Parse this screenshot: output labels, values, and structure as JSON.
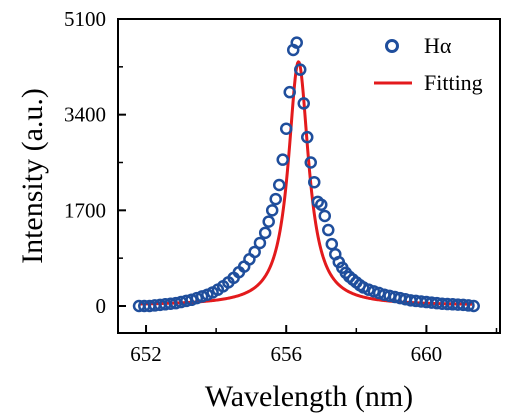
{
  "chart_data": {
    "type": "scatter",
    "xlabel": "Wavelength (nm)",
    "ylabel": "Intensity (a.u.)",
    "xlim": [
      651.2,
      662.1
    ],
    "ylim": [
      -480,
      5100
    ],
    "xticks": [
      652,
      656,
      660
    ],
    "yticks": [
      0,
      1700,
      3400,
      5100
    ],
    "grid": false,
    "legend_position": "top-right",
    "series": [
      {
        "name": "Hα",
        "kind": "markers",
        "marker": "open-circle",
        "color": "#1f4e9c",
        "x": [
          651.8,
          651.95,
          652.1,
          652.25,
          652.4,
          652.55,
          652.7,
          652.85,
          653.0,
          653.15,
          653.3,
          653.45,
          653.6,
          653.75,
          653.9,
          654.05,
          654.2,
          654.35,
          654.5,
          654.65,
          654.8,
          654.95,
          655.1,
          655.25,
          655.4,
          655.5,
          655.6,
          655.7,
          655.8,
          655.9,
          656.0,
          656.1,
          656.2,
          656.3,
          656.4,
          656.5,
          656.6,
          656.7,
          656.8,
          656.9,
          657.0,
          657.1,
          657.2,
          657.3,
          657.4,
          657.5,
          657.6,
          657.7,
          657.8,
          657.9,
          658.0,
          658.1,
          658.2,
          658.35,
          658.5,
          658.65,
          658.8,
          658.95,
          659.1,
          659.25,
          659.4,
          659.55,
          659.7,
          659.85,
          660.0,
          660.15,
          660.3,
          660.45,
          660.6,
          660.75,
          660.9,
          661.05,
          661.2,
          661.35
        ],
        "y": [
          0,
          0,
          0,
          10,
          20,
          30,
          40,
          50,
          70,
          90,
          110,
          140,
          170,
          200,
          240,
          290,
          350,
          420,
          500,
          600,
          700,
          830,
          960,
          1120,
          1300,
          1500,
          1700,
          1900,
          2150,
          2600,
          3150,
          3800,
          4550,
          4680,
          4200,
          3600,
          3000,
          2550,
          2200,
          1850,
          1800,
          1600,
          1350,
          1100,
          920,
          780,
          680,
          590,
          520,
          470,
          420,
          370,
          330,
          290,
          260,
          230,
          200,
          180,
          160,
          140,
          120,
          100,
          90,
          80,
          70,
          60,
          50,
          40,
          35,
          30,
          25,
          20,
          10,
          0
        ]
      },
      {
        "name": "Fitting",
        "kind": "line",
        "color": "#e31a1c",
        "model": "lorentzian",
        "center": 656.35,
        "fwhm": 0.7,
        "amplitude": 4330,
        "offset": 10,
        "x_range": [
          651.8,
          661.3
        ]
      }
    ]
  }
}
